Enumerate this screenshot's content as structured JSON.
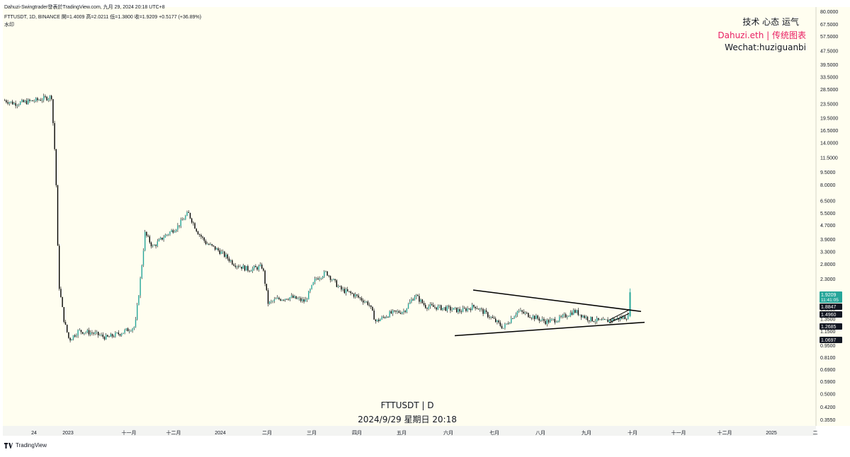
{
  "header": {
    "title_line": "Dahuzi-Swingtrader發表於TradingView.com,  九月 29, 2024 20:18 UTC+8",
    "ohlc_line": "FTTUSDT, 1D, BINANCE  開=1.4009  高=2.0211  低=1.3800  收=1.9209  +0.5177 (+36.89%)",
    "watermark_small": "水印"
  },
  "watermark": {
    "line1": "技术 心态 运气",
    "line2": "Dahuzi.eth | 传统图表",
    "line3": "Wechat:huziguanbi",
    "line2_color": "#e91e63"
  },
  "center_label": {
    "symbol": "FTTUSDT | D",
    "datetime": "2024/9/29 星期日 20:18"
  },
  "footer": {
    "brand": "TradingView"
  },
  "colors": {
    "background": "#fffef0",
    "up": "#26a69a",
    "down": "#ef5350",
    "candle_body": "#000000",
    "axis_text": "#131722",
    "badge_dark": "#131722",
    "badge_green": "#26a69a"
  },
  "chart_data": {
    "type": "candlestick",
    "y_scale": "log",
    "ylim": [
      0.32,
      80
    ],
    "y_ticks": [
      "80.0000",
      "67.5000",
      "57.5000",
      "47.5000",
      "39.5000",
      "33.5000",
      "28.5000",
      "23.5000",
      "19.5000",
      "16.5000",
      "14.0000",
      "11.5000",
      "9.5000",
      "8.0000",
      "6.5000",
      "5.5000",
      "4.7000",
      "3.9000",
      "3.3000",
      "2.8000",
      "2.3000",
      "1.5500",
      "1.3500",
      "1.1500",
      "0.9500",
      "0.8100",
      "0.6900",
      "0.5900",
      "0.5000",
      "0.4200",
      "0.3550"
    ],
    "x_ticks": [
      "24",
      "2023",
      "十一月",
      "十二月",
      "2024",
      "二月",
      "三月",
      "四月",
      "五月",
      "六月",
      "七月",
      "八月",
      "九月",
      "十月",
      "十一月",
      "十二月",
      "2025",
      "二"
    ],
    "price_badges": [
      {
        "value": "1.9209",
        "sub": "11:41:05",
        "style": "green"
      },
      {
        "value": "1.8847",
        "style": "dark"
      },
      {
        "value": "1.4960",
        "style": "dark"
      },
      {
        "value": "1.2685",
        "style": "dark"
      },
      {
        "value": "1.0697",
        "style": "dark"
      }
    ],
    "approx_close_path": [
      [
        0,
        25.0
      ],
      [
        20,
        23.5
      ],
      [
        50,
        24.5
      ],
      [
        72,
        25.8
      ],
      [
        78,
        10.0
      ],
      [
        82,
        2.2
      ],
      [
        90,
        1.3
      ],
      [
        97,
        1.02
      ],
      [
        110,
        1.15
      ],
      [
        130,
        1.12
      ],
      [
        150,
        1.05
      ],
      [
        170,
        1.12
      ],
      [
        190,
        1.22
      ],
      [
        198,
        2.4
      ],
      [
        204,
        4.2
      ],
      [
        215,
        3.5
      ],
      [
        230,
        4.0
      ],
      [
        250,
        4.6
      ],
      [
        265,
        5.5
      ],
      [
        278,
        4.3
      ],
      [
        290,
        3.7
      ],
      [
        310,
        3.3
      ],
      [
        330,
        2.8
      ],
      [
        350,
        2.6
      ],
      [
        370,
        2.7
      ],
      [
        378,
        1.65
      ],
      [
        390,
        1.75
      ],
      [
        410,
        1.8
      ],
      [
        430,
        1.7
      ],
      [
        445,
        2.3
      ],
      [
        460,
        2.5
      ],
      [
        480,
        2.0
      ],
      [
        500,
        1.85
      ],
      [
        520,
        1.65
      ],
      [
        530,
        1.3
      ],
      [
        550,
        1.45
      ],
      [
        570,
        1.5
      ],
      [
        585,
        1.85
      ],
      [
        600,
        1.6
      ],
      [
        630,
        1.55
      ],
      [
        650,
        1.5
      ],
      [
        670,
        1.6
      ],
      [
        690,
        1.4
      ],
      [
        710,
        1.2
      ],
      [
        730,
        1.5
      ],
      [
        750,
        1.4
      ],
      [
        770,
        1.3
      ],
      [
        790,
        1.35
      ],
      [
        810,
        1.5
      ],
      [
        830,
        1.35
      ],
      [
        850,
        1.3
      ],
      [
        870,
        1.35
      ],
      [
        888,
        1.4
      ],
      [
        890,
        1.92
      ]
    ],
    "trendlines": [
      {
        "name": "upper",
        "points": [
          [
            668,
            1.98
          ],
          [
            905,
            1.49
          ]
        ]
      },
      {
        "name": "lower",
        "points": [
          [
            642,
            1.08
          ],
          [
            910,
            1.29
          ]
        ]
      }
    ]
  }
}
